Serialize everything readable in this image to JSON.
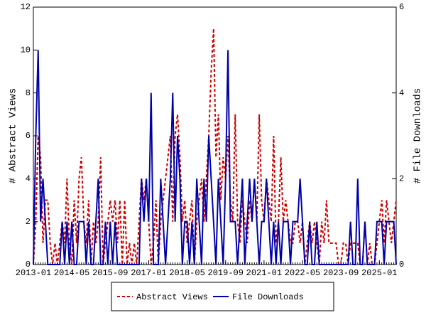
{
  "chart_data": {
    "type": "line",
    "x": [
      "2013-01",
      "2013-02",
      "2013-03",
      "2013-04",
      "2013-05",
      "2013-06",
      "2013-07",
      "2013-08",
      "2013-09",
      "2013-10",
      "2013-11",
      "2013-12",
      "2014-01",
      "2014-02",
      "2014-03",
      "2014-04",
      "2014-05",
      "2014-06",
      "2014-07",
      "2014-08",
      "2014-09",
      "2014-10",
      "2014-11",
      "2014-12",
      "2015-01",
      "2015-02",
      "2015-03",
      "2015-04",
      "2015-05",
      "2015-06",
      "2015-07",
      "2015-08",
      "2015-09",
      "2015-10",
      "2015-11",
      "2015-12",
      "2016-01",
      "2016-02",
      "2016-03",
      "2016-04",
      "2016-05",
      "2016-06",
      "2016-07",
      "2016-08",
      "2016-09",
      "2016-10",
      "2016-11",
      "2016-12",
      "2017-01",
      "2017-02",
      "2017-03",
      "2017-04",
      "2017-05",
      "2017-06",
      "2017-07",
      "2017-08",
      "2017-09",
      "2017-10",
      "2017-11",
      "2017-12",
      "2018-01",
      "2018-02",
      "2018-03",
      "2018-04",
      "2018-05",
      "2018-06",
      "2018-07",
      "2018-08",
      "2018-09",
      "2018-10",
      "2018-11",
      "2018-12",
      "2019-01",
      "2019-02",
      "2019-03",
      "2019-04",
      "2019-05",
      "2019-06",
      "2019-07",
      "2019-08",
      "2019-09",
      "2019-10",
      "2019-11",
      "2019-12",
      "2020-01",
      "2020-02",
      "2020-03",
      "2020-04",
      "2020-05",
      "2020-06",
      "2020-07",
      "2020-08",
      "2020-09",
      "2020-10",
      "2020-11",
      "2020-12",
      "2021-01",
      "2021-02",
      "2021-03",
      "2021-04",
      "2021-05",
      "2021-06",
      "2021-07",
      "2021-08",
      "2021-09",
      "2021-10",
      "2021-11",
      "2021-12",
      "2022-01",
      "2022-02",
      "2022-03",
      "2022-04",
      "2022-05",
      "2022-06",
      "2022-07",
      "2022-08",
      "2022-09",
      "2022-10",
      "2022-11",
      "2022-12",
      "2023-01",
      "2023-02",
      "2023-03",
      "2023-04",
      "2023-05",
      "2023-06",
      "2023-07",
      "2023-08",
      "2023-09",
      "2023-10",
      "2023-11",
      "2023-12",
      "2024-01",
      "2024-02",
      "2024-03",
      "2024-04",
      "2024-05",
      "2024-06",
      "2024-07",
      "2024-08",
      "2024-09",
      "2024-10",
      "2024-11",
      "2024-12",
      "2025-01",
      "2025-02",
      "2025-03",
      "2025-04",
      "2025-05",
      "2025-06",
      "2025-07",
      "2025-08"
    ],
    "xticks": [
      "2013-01",
      "2014-05",
      "2015-09",
      "2017-01",
      "2018-05",
      "2019-09",
      "2021-01",
      "2022-05",
      "2023-09",
      "2025-01"
    ],
    "ylabel": "# Abstract Views",
    "y2label": "# File Downloads",
    "ylim": [
      0,
      12
    ],
    "yticks": [
      0,
      2,
      4,
      6,
      8,
      10,
      12
    ],
    "y2lim": [
      0,
      6
    ],
    "y2ticks": [
      0,
      2,
      4,
      6
    ],
    "series": [
      {
        "name": "Abstract Views",
        "color": "#cc0000",
        "dashed": true,
        "values": [
          0,
          2,
          6,
          5,
          1,
          3,
          3,
          1,
          0,
          1,
          0,
          1,
          2,
          1,
          4,
          1,
          0,
          3,
          1,
          4,
          5,
          2,
          1,
          3,
          0,
          2,
          1,
          2,
          5,
          0,
          1,
          2,
          3,
          2,
          3,
          1,
          3,
          0,
          3,
          0,
          1,
          0,
          1,
          0,
          2,
          4,
          3,
          4,
          2,
          0,
          1,
          3,
          0,
          2,
          3,
          4,
          5,
          6,
          2,
          6,
          7,
          5,
          2,
          3,
          1,
          2,
          3,
          0,
          2,
          3,
          4,
          2,
          4,
          6,
          9,
          11,
          5,
          7,
          3,
          5,
          4,
          6,
          3,
          2,
          7,
          2,
          1,
          3,
          2,
          1,
          3,
          2,
          4,
          2,
          7,
          3,
          2,
          4,
          3,
          2,
          6,
          1,
          2,
          5,
          2,
          3,
          2,
          1,
          1,
          2,
          2,
          1,
          2,
          0,
          1,
          2,
          1,
          2,
          1,
          0,
          2,
          1,
          3,
          1,
          1,
          1,
          1,
          0,
          0,
          1,
          1,
          0,
          1,
          1,
          1,
          1,
          0,
          0,
          2,
          0,
          1,
          0,
          0,
          1,
          2,
          3,
          1,
          3,
          2,
          1,
          2,
          3
        ]
      },
      {
        "name": "File Downloads",
        "color": "#0000aa",
        "axis": "y2",
        "dashed": false,
        "values": [
          0,
          3,
          5,
          1,
          2,
          1,
          0,
          0,
          0,
          0,
          0,
          0,
          1,
          0,
          1,
          0,
          1,
          0,
          0,
          1,
          1,
          1,
          0,
          1,
          0,
          0,
          1,
          2,
          0,
          0,
          1,
          0,
          1,
          0,
          1,
          0,
          0,
          0,
          0,
          0,
          0,
          0,
          0,
          0,
          0,
          2,
          1,
          2,
          1,
          4,
          0,
          0,
          0,
          2,
          1,
          0,
          1,
          2,
          4,
          1,
          3,
          2,
          0,
          1,
          1,
          0,
          1,
          0,
          2,
          1,
          0,
          2,
          1,
          3,
          2,
          1,
          0,
          2,
          1,
          0,
          2,
          5,
          1,
          1,
          1,
          0,
          1,
          2,
          0,
          1,
          2,
          1,
          2,
          1,
          0,
          1,
          1,
          2,
          1,
          0,
          1,
          0,
          1,
          0,
          1,
          1,
          1,
          0,
          1,
          1,
          1,
          2,
          1,
          0,
          0,
          1,
          0,
          0,
          1,
          0,
          0,
          0,
          0,
          0,
          0,
          0,
          0,
          0,
          0,
          0,
          0,
          0,
          1,
          0,
          0,
          2,
          0,
          0,
          1,
          0,
          0,
          0,
          0,
          1,
          1,
          1,
          0,
          1,
          1,
          1,
          1,
          0
        ]
      }
    ]
  }
}
